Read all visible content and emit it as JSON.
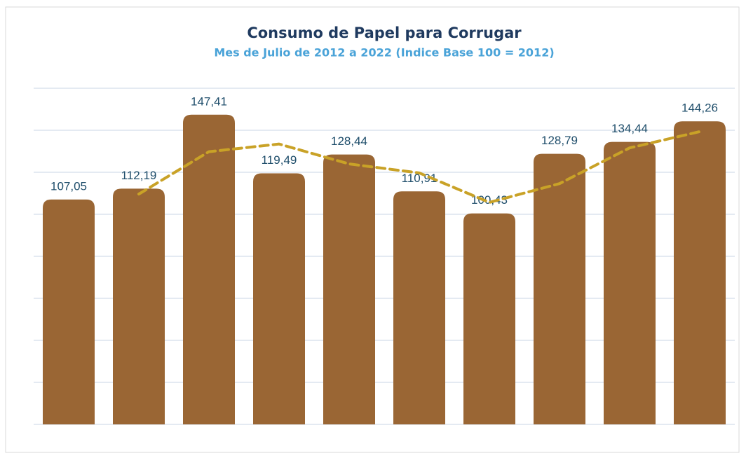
{
  "chart_data": {
    "type": "bar",
    "title": "Consumo de Papel para  Corrugar",
    "subtitle": "Mes de Julio de 2012 a 2022 (Indice Base 100 = 2012)",
    "categories": [
      null,
      null,
      null,
      null,
      null,
      null,
      null,
      null,
      null,
      null
    ],
    "series": [
      {
        "color": "#9a6634",
        "values": [
          107.05,
          112.19,
          147.41,
          119.49,
          128.44,
          110.91,
          100.43,
          128.79,
          134.44,
          144.26
        ],
        "value_labels": [
          "107,05",
          "112,19",
          "147,41",
          "119,49",
          "128,44",
          "110,91",
          "100,43",
          "128,79",
          "134,44",
          "144,26"
        ]
      },
      {
        "color": "#c9a227",
        "dashed": true,
        "values": [
          null,
          109.62,
          129.8,
          133.45,
          123.97,
          119.68,
          105.67,
          114.61,
          131.6,
          139.35
        ]
      }
    ],
    "ylim": [
      0,
      160
    ],
    "yticks": [
      0,
      20,
      40,
      60,
      80,
      100,
      120,
      140,
      160
    ],
    "grid": true
  }
}
